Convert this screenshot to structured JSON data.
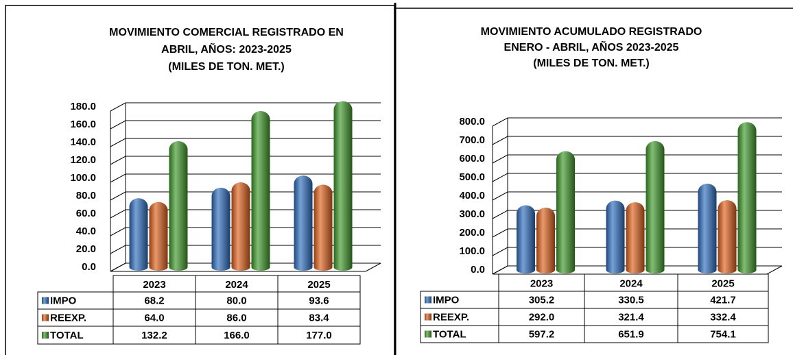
{
  "chart_data": [
    {
      "type": "bar",
      "title": [
        "MOVIMIENTO COMERCIAL REGISTRADO EN",
        "ABRIL, AÑOS: 2023-2025",
        "(MILES DE TON. MET.)"
      ],
      "categories": [
        "2023",
        "2024",
        "2025"
      ],
      "series": [
        {
          "name": "IMPO",
          "color": "#2e6fc0",
          "values": [
            68.2,
            80,
            93.6
          ],
          "value_labels": [
            "68.2",
            "80.0",
            "93.6"
          ]
        },
        {
          "name": "REEXP.",
          "color": "#e0601c",
          "values": [
            64,
            86,
            83.4
          ],
          "value_labels": [
            "64.0",
            "86.0",
            "83.4"
          ]
        },
        {
          "name": "TOTAL",
          "color": "#3f9a2a",
          "values": [
            132.2,
            166,
            177
          ],
          "value_labels": [
            "132.2",
            "166.0",
            "177.0"
          ]
        }
      ],
      "ylim": [
        0,
        180
      ],
      "yticks": [
        {
          "value": 0,
          "label": "0.0"
        },
        {
          "value": 20,
          "label": "20.0"
        },
        {
          "value": 40,
          "label": "40.0"
        },
        {
          "value": 60,
          "label": "60.0"
        },
        {
          "value": 80,
          "label": "80.0"
        },
        {
          "value": 100,
          "label": "100.0"
        },
        {
          "value": 120,
          "label": "120.0"
        },
        {
          "value": 140,
          "label": "140.0"
        },
        {
          "value": 160,
          "label": "160.0"
        },
        {
          "value": 180,
          "label": "180.0"
        }
      ],
      "grid": true
    },
    {
      "type": "bar",
      "title": [
        "MOVIMIENTO ACUMULADO REGISTRADO",
        "ENERO - ABRIL, AÑOS 2023-2025",
        "(MILES DE TON. MET.)"
      ],
      "categories": [
        "2023",
        "2024",
        "2025"
      ],
      "series": [
        {
          "name": "IMPO",
          "color": "#2e6fc0",
          "values": [
            305.2,
            330.5,
            421.7
          ],
          "value_labels": [
            "305.2",
            "330.5",
            "421.7"
          ]
        },
        {
          "name": "REEXP.",
          "color": "#e0601c",
          "values": [
            292,
            321.4,
            332.4
          ],
          "value_labels": [
            "292.0",
            "321.4",
            "332.4"
          ]
        },
        {
          "name": "TOTAL",
          "color": "#3f9a2a",
          "values": [
            597.2,
            651.9,
            754.1
          ],
          "value_labels": [
            "597.2",
            "651.9",
            "754.1"
          ]
        }
      ],
      "ylim": [
        0,
        800
      ],
      "yticks": [
        {
          "value": 0,
          "label": "0.0"
        },
        {
          "value": 100,
          "label": "100.0"
        },
        {
          "value": 200,
          "label": "200.0"
        },
        {
          "value": 300,
          "label": "300.0"
        },
        {
          "value": 400,
          "label": "400.0"
        },
        {
          "value": 500,
          "label": "500.0"
        },
        {
          "value": 600,
          "label": "600.0"
        },
        {
          "value": 700,
          "label": "700.0"
        },
        {
          "value": 800,
          "label": "800.0"
        }
      ],
      "grid": true
    }
  ]
}
